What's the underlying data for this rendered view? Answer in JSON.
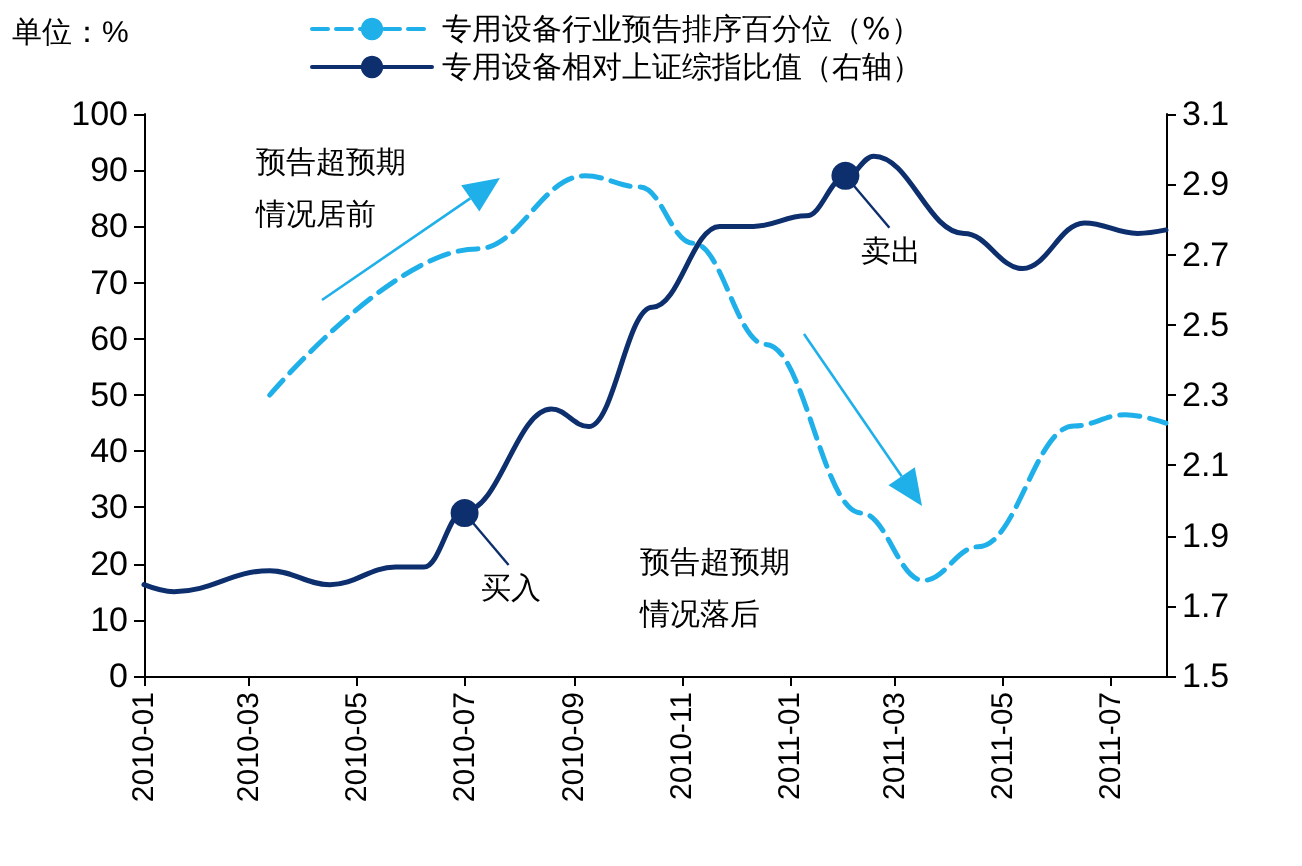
{
  "chart_data": {
    "type": "line",
    "ylabel": "单位：%",
    "legend": "top",
    "grid": false,
    "marker": "none",
    "xlim": [
      "2010-01",
      "2011-08"
    ],
    "xticks": [
      "2010-01",
      "2010-03",
      "2010-05",
      "2010-07",
      "2010-09",
      "2010-11",
      "2011-01",
      "2011-03",
      "2011-05",
      "2011-07"
    ],
    "ylim": [
      0,
      100
    ],
    "yticks": [
      0,
      10,
      20,
      30,
      40,
      50,
      60,
      70,
      80,
      90,
      100
    ],
    "y2lim": [
      1.5,
      3.1
    ],
    "y2ticks": [
      1.5,
      1.7,
      1.9,
      2.1,
      2.3,
      2.5,
      2.7,
      2.9,
      3.1
    ],
    "series": [
      {
        "name": "专用设备行业预告排序百分位（%）",
        "color": "#1fb0ea",
        "line_style": "dashed",
        "x": [
          "2010-03-13",
          "2010-07-08",
          "2010-09-07",
          "2010-10-08",
          "2010-11-07",
          "2010-12-18",
          "2011-02-10",
          "2011-03-17",
          "2011-04-17",
          "2011-06-10",
          "2011-07-09",
          "2011-08-01"
        ],
        "values": [
          50,
          76,
          89,
          87,
          77,
          59,
          29,
          17,
          23,
          44.5,
          46.5,
          45
        ]
      },
      {
        "name": "专用设备相对上证综指比值（右轴）",
        "color": "#0d2f6e",
        "line_style": "solid",
        "axis": "y2",
        "x": [
          "2010-01-01",
          "2010-01-18",
          "2010-03-13",
          "2010-04-16",
          "2010-05-23",
          "2010-06-08",
          "2010-07-01",
          "2010-08-19",
          "2010-09-09",
          "2010-10-15",
          "2010-11-22",
          "2010-12-11",
          "2011-01-10",
          "2011-02-01",
          "2011-02-17",
          "2011-04-09",
          "2011-05-12",
          "2011-06-16",
          "2011-07-16",
          "2011-08-01"
        ],
        "values": [
          1.76,
          1.74,
          1.8,
          1.76,
          1.81,
          1.81,
          1.97,
          2.26,
          2.21,
          2.55,
          2.78,
          2.78,
          2.81,
          2.92,
          2.98,
          2.76,
          2.66,
          2.79,
          2.76,
          2.77
        ]
      }
    ],
    "annotations": [
      "预告超预期情况居前",
      "预告超预期情况落后",
      {
        "text": "买入",
        "x": "2010-07-01",
        "y": 29
      },
      {
        "text": "卖出",
        "x": "2011-02-01",
        "y": 89
      }
    ]
  }
}
